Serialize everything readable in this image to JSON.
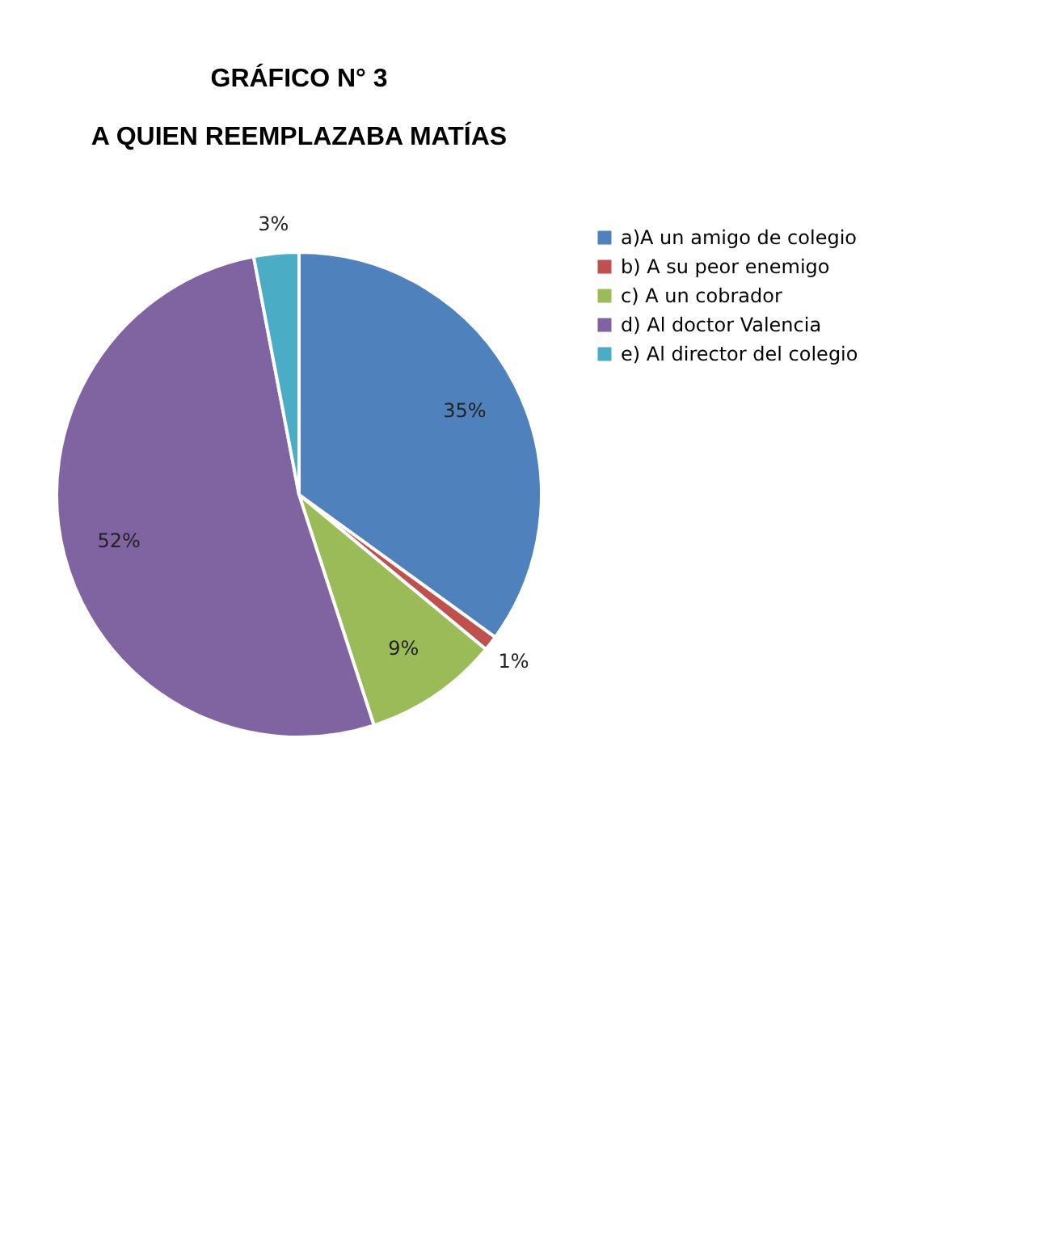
{
  "chart_data": {
    "type": "pie",
    "title": "GRÁFICO N° 3",
    "subtitle": "A QUIEN REEMPLAZABA MATÍAS",
    "categories": [
      "a)A un amigo de colegio",
      "b) A su peor enemigo",
      "c) A un cobrador",
      "d) Al doctor Valencia",
      "e) Al director del colegio"
    ],
    "values": [
      35,
      1,
      9,
      52,
      3
    ],
    "colors": [
      "#4f81bd",
      "#c0504d",
      "#9bbb59",
      "#8064a2",
      "#4bacc6"
    ],
    "value_labels": [
      "35%",
      "1%",
      "9%",
      "52%",
      "3%"
    ],
    "legend": "right"
  }
}
